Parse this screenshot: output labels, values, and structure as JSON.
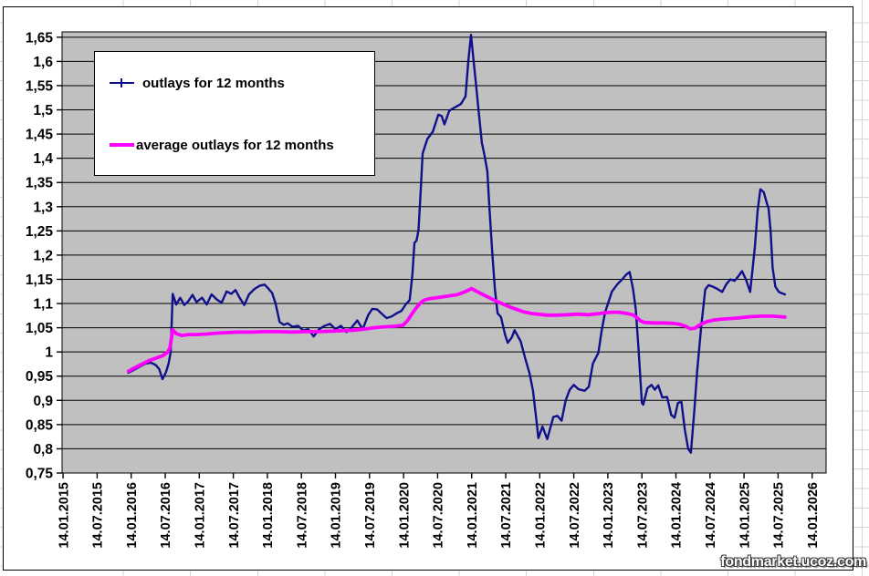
{
  "watermark": "fondmarket.ucoz.com",
  "chart_data": {
    "type": "line",
    "title": "",
    "grid": true,
    "legend_position": "top-left-inside",
    "plot_bg": "#c0c0c0",
    "x_axis": {
      "range": [
        2015.025,
        2026.245
      ],
      "tick_values": [
        2015.04,
        2015.54,
        2016.04,
        2016.54,
        2017.04,
        2017.54,
        2018.04,
        2018.54,
        2019.04,
        2019.54,
        2020.04,
        2020.54,
        2021.04,
        2021.54,
        2022.04,
        2022.54,
        2023.04,
        2023.54,
        2024.04,
        2024.54,
        2025.04,
        2025.54,
        2026.04
      ],
      "tick_labels": [
        "14.01.2015",
        "14.07.2015",
        "14.01.2016",
        "14.07.2016",
        "14.01.2017",
        "14.07.2017",
        "14.01.2018",
        "14.07.2018",
        "14.01.2019",
        "14.07.2019",
        "14.01.2020",
        "14.07.2020",
        "14.01.2021",
        "14.07.2021",
        "14.01.2022",
        "14.07.2022",
        "14.01.2023",
        "14.07.2023",
        "14.01.2024",
        "14.07.2024",
        "14.01.2025",
        "14.07.2025",
        "14.01.2026"
      ]
    },
    "y_axis": {
      "range": [
        0.75,
        1.661
      ],
      "tick_values": [
        1.65,
        1.6,
        1.55,
        1.5,
        1.45,
        1.4,
        1.35,
        1.3,
        1.25,
        1.2,
        1.15,
        1.1,
        1.05,
        1.0,
        0.95,
        0.9,
        0.85,
        0.8,
        0.75
      ],
      "tick_labels": [
        "1,65",
        "1,6",
        "1,55",
        "1,5",
        "1,45",
        "1,4",
        "1,35",
        "1,3",
        "1,25",
        "1,2",
        "1,15",
        "1,1",
        "1,05",
        "1",
        "0,95",
        "0,9",
        "0,85",
        "0,8",
        "0,75"
      ]
    },
    "series": [
      {
        "name": "outlays for 12 months",
        "color": "#10108c",
        "line_width": 2.4,
        "points": [
          [
            2016.0,
            0.957
          ],
          [
            2016.08,
            0.963
          ],
          [
            2016.17,
            0.97
          ],
          [
            2016.25,
            0.976
          ],
          [
            2016.33,
            0.978
          ],
          [
            2016.4,
            0.973
          ],
          [
            2016.45,
            0.965
          ],
          [
            2016.5,
            0.944
          ],
          [
            2016.55,
            0.958
          ],
          [
            2016.59,
            0.976
          ],
          [
            2016.62,
            1.0
          ],
          [
            2016.65,
            1.12
          ],
          [
            2016.7,
            1.098
          ],
          [
            2016.76,
            1.112
          ],
          [
            2016.82,
            1.097
          ],
          [
            2016.88,
            1.105
          ],
          [
            2016.94,
            1.118
          ],
          [
            2017.0,
            1.103
          ],
          [
            2017.08,
            1.112
          ],
          [
            2017.15,
            1.098
          ],
          [
            2017.22,
            1.119
          ],
          [
            2017.3,
            1.108
          ],
          [
            2017.37,
            1.102
          ],
          [
            2017.44,
            1.125
          ],
          [
            2017.51,
            1.12
          ],
          [
            2017.57,
            1.128
          ],
          [
            2017.64,
            1.11
          ],
          [
            2017.7,
            1.097
          ],
          [
            2017.77,
            1.119
          ],
          [
            2017.85,
            1.13
          ],
          [
            2017.93,
            1.137
          ],
          [
            2018.0,
            1.139
          ],
          [
            2018.06,
            1.13
          ],
          [
            2018.11,
            1.122
          ],
          [
            2018.16,
            1.1
          ],
          [
            2018.22,
            1.062
          ],
          [
            2018.28,
            1.056
          ],
          [
            2018.34,
            1.059
          ],
          [
            2018.41,
            1.052
          ],
          [
            2018.49,
            1.054
          ],
          [
            2018.57,
            1.044
          ],
          [
            2018.64,
            1.047
          ],
          [
            2018.72,
            1.032
          ],
          [
            2018.8,
            1.047
          ],
          [
            2018.88,
            1.054
          ],
          [
            2018.96,
            1.058
          ],
          [
            2019.04,
            1.047
          ],
          [
            2019.12,
            1.054
          ],
          [
            2019.2,
            1.041
          ],
          [
            2019.28,
            1.051
          ],
          [
            2019.36,
            1.065
          ],
          [
            2019.44,
            1.047
          ],
          [
            2019.52,
            1.076
          ],
          [
            2019.58,
            1.089
          ],
          [
            2019.65,
            1.088
          ],
          [
            2019.72,
            1.079
          ],
          [
            2019.79,
            1.07
          ],
          [
            2019.86,
            1.073
          ],
          [
            2019.94,
            1.08
          ],
          [
            2020.01,
            1.085
          ],
          [
            2020.07,
            1.098
          ],
          [
            2020.13,
            1.107
          ],
          [
            2020.17,
            1.16
          ],
          [
            2020.2,
            1.225
          ],
          [
            2020.23,
            1.23
          ],
          [
            2020.26,
            1.252
          ],
          [
            2020.29,
            1.33
          ],
          [
            2020.32,
            1.41
          ],
          [
            2020.39,
            1.44
          ],
          [
            2020.47,
            1.455
          ],
          [
            2020.55,
            1.49
          ],
          [
            2020.6,
            1.487
          ],
          [
            2020.64,
            1.47
          ],
          [
            2020.71,
            1.498
          ],
          [
            2020.79,
            1.505
          ],
          [
            2020.88,
            1.512
          ],
          [
            2020.95,
            1.528
          ],
          [
            2020.99,
            1.6
          ],
          [
            2021.03,
            1.655
          ],
          [
            2021.07,
            1.598
          ],
          [
            2021.1,
            1.558
          ],
          [
            2021.14,
            1.5
          ],
          [
            2021.19,
            1.432
          ],
          [
            2021.23,
            1.405
          ],
          [
            2021.27,
            1.373
          ],
          [
            2021.3,
            1.3
          ],
          [
            2021.34,
            1.21
          ],
          [
            2021.38,
            1.131
          ],
          [
            2021.42,
            1.08
          ],
          [
            2021.47,
            1.072
          ],
          [
            2021.53,
            1.036
          ],
          [
            2021.57,
            1.019
          ],
          [
            2021.63,
            1.03
          ],
          [
            2021.67,
            1.045
          ],
          [
            2021.76,
            1.022
          ],
          [
            2021.83,
            0.985
          ],
          [
            2021.89,
            0.956
          ],
          [
            2021.94,
            0.92
          ],
          [
            2021.99,
            0.86
          ],
          [
            2022.02,
            0.822
          ],
          [
            2022.08,
            0.846
          ],
          [
            2022.15,
            0.82
          ],
          [
            2022.24,
            0.866
          ],
          [
            2022.3,
            0.868
          ],
          [
            2022.36,
            0.858
          ],
          [
            2022.42,
            0.9
          ],
          [
            2022.48,
            0.922
          ],
          [
            2022.54,
            0.932
          ],
          [
            2022.61,
            0.923
          ],
          [
            2022.7,
            0.92
          ],
          [
            2022.76,
            0.928
          ],
          [
            2022.82,
            0.976
          ],
          [
            2022.9,
            0.998
          ],
          [
            2022.95,
            1.045
          ],
          [
            2023.0,
            1.082
          ],
          [
            2023.1,
            1.125
          ],
          [
            2023.18,
            1.14
          ],
          [
            2023.25,
            1.15
          ],
          [
            2023.31,
            1.16
          ],
          [
            2023.36,
            1.165
          ],
          [
            2023.41,
            1.13
          ],
          [
            2023.45,
            1.088
          ],
          [
            2023.49,
            1.007
          ],
          [
            2023.54,
            0.895
          ],
          [
            2023.56,
            0.891
          ],
          [
            2023.62,
            0.925
          ],
          [
            2023.68,
            0.932
          ],
          [
            2023.73,
            0.922
          ],
          [
            2023.78,
            0.931
          ],
          [
            2023.84,
            0.906
          ],
          [
            2023.91,
            0.907
          ],
          [
            2023.97,
            0.87
          ],
          [
            2024.02,
            0.864
          ],
          [
            2024.07,
            0.895
          ],
          [
            2024.12,
            0.897
          ],
          [
            2024.17,
            0.84
          ],
          [
            2024.22,
            0.8
          ],
          [
            2024.26,
            0.792
          ],
          [
            2024.31,
            0.88
          ],
          [
            2024.35,
            0.957
          ],
          [
            2024.41,
            1.051
          ],
          [
            2024.47,
            1.129
          ],
          [
            2024.52,
            1.138
          ],
          [
            2024.58,
            1.135
          ],
          [
            2024.65,
            1.13
          ],
          [
            2024.72,
            1.124
          ],
          [
            2024.78,
            1.14
          ],
          [
            2024.84,
            1.15
          ],
          [
            2024.9,
            1.147
          ],
          [
            2024.96,
            1.157
          ],
          [
            2025.01,
            1.167
          ],
          [
            2025.07,
            1.149
          ],
          [
            2025.13,
            1.124
          ],
          [
            2025.2,
            1.217
          ],
          [
            2025.24,
            1.292
          ],
          [
            2025.28,
            1.336
          ],
          [
            2025.33,
            1.33
          ],
          [
            2025.37,
            1.31
          ],
          [
            2025.4,
            1.296
          ],
          [
            2025.43,
            1.25
          ],
          [
            2025.46,
            1.174
          ],
          [
            2025.5,
            1.135
          ],
          [
            2025.55,
            1.124
          ],
          [
            2025.6,
            1.121
          ],
          [
            2025.64,
            1.119
          ]
        ]
      },
      {
        "name": "average outlays for 12 months",
        "color": "#ff00ff",
        "line_width": 3.8,
        "points": [
          [
            2016.0,
            0.96
          ],
          [
            2016.1,
            0.968
          ],
          [
            2016.2,
            0.975
          ],
          [
            2016.3,
            0.982
          ],
          [
            2016.4,
            0.987
          ],
          [
            2016.5,
            0.992
          ],
          [
            2016.57,
            0.999
          ],
          [
            2016.61,
            1.008
          ],
          [
            2016.65,
            1.046
          ],
          [
            2016.7,
            1.038
          ],
          [
            2016.78,
            1.034
          ],
          [
            2016.88,
            1.036
          ],
          [
            2017.0,
            1.036
          ],
          [
            2017.15,
            1.037
          ],
          [
            2017.3,
            1.039
          ],
          [
            2017.45,
            1.04
          ],
          [
            2017.6,
            1.041
          ],
          [
            2017.8,
            1.041
          ],
          [
            2018.0,
            1.042
          ],
          [
            2018.2,
            1.042
          ],
          [
            2018.4,
            1.041
          ],
          [
            2018.6,
            1.042
          ],
          [
            2018.8,
            1.042
          ],
          [
            2019.0,
            1.043
          ],
          [
            2019.15,
            1.044
          ],
          [
            2019.3,
            1.045
          ],
          [
            2019.45,
            1.047
          ],
          [
            2019.6,
            1.05
          ],
          [
            2019.75,
            1.052
          ],
          [
            2019.9,
            1.053
          ],
          [
            2020.03,
            1.055
          ],
          [
            2020.1,
            1.065
          ],
          [
            2020.16,
            1.078
          ],
          [
            2020.22,
            1.09
          ],
          [
            2020.28,
            1.1
          ],
          [
            2020.34,
            1.107
          ],
          [
            2020.42,
            1.11
          ],
          [
            2020.52,
            1.112
          ],
          [
            2020.62,
            1.114
          ],
          [
            2020.72,
            1.116
          ],
          [
            2020.82,
            1.118
          ],
          [
            2020.92,
            1.123
          ],
          [
            2021.0,
            1.128
          ],
          [
            2021.04,
            1.131
          ],
          [
            2021.1,
            1.126
          ],
          [
            2021.2,
            1.119
          ],
          [
            2021.3,
            1.112
          ],
          [
            2021.4,
            1.105
          ],
          [
            2021.5,
            1.099
          ],
          [
            2021.6,
            1.093
          ],
          [
            2021.7,
            1.088
          ],
          [
            2021.8,
            1.083
          ],
          [
            2021.9,
            1.08
          ],
          [
            2022.0,
            1.078
          ],
          [
            2022.15,
            1.076
          ],
          [
            2022.3,
            1.076
          ],
          [
            2022.45,
            1.077
          ],
          [
            2022.6,
            1.078
          ],
          [
            2022.75,
            1.077
          ],
          [
            2022.9,
            1.079
          ],
          [
            2023.0,
            1.081
          ],
          [
            2023.1,
            1.082
          ],
          [
            2023.2,
            1.082
          ],
          [
            2023.3,
            1.08
          ],
          [
            2023.4,
            1.077
          ],
          [
            2023.46,
            1.072
          ],
          [
            2023.52,
            1.064
          ],
          [
            2023.58,
            1.061
          ],
          [
            2023.7,
            1.06
          ],
          [
            2023.85,
            1.06
          ],
          [
            2024.0,
            1.059
          ],
          [
            2024.1,
            1.057
          ],
          [
            2024.18,
            1.053
          ],
          [
            2024.25,
            1.048
          ],
          [
            2024.32,
            1.049
          ],
          [
            2024.4,
            1.057
          ],
          [
            2024.5,
            1.063
          ],
          [
            2024.6,
            1.066
          ],
          [
            2024.72,
            1.068
          ],
          [
            2024.85,
            1.069
          ],
          [
            2025.0,
            1.071
          ],
          [
            2025.15,
            1.073
          ],
          [
            2025.3,
            1.074
          ],
          [
            2025.45,
            1.074
          ],
          [
            2025.55,
            1.073
          ],
          [
            2025.64,
            1.072
          ]
        ]
      }
    ]
  }
}
